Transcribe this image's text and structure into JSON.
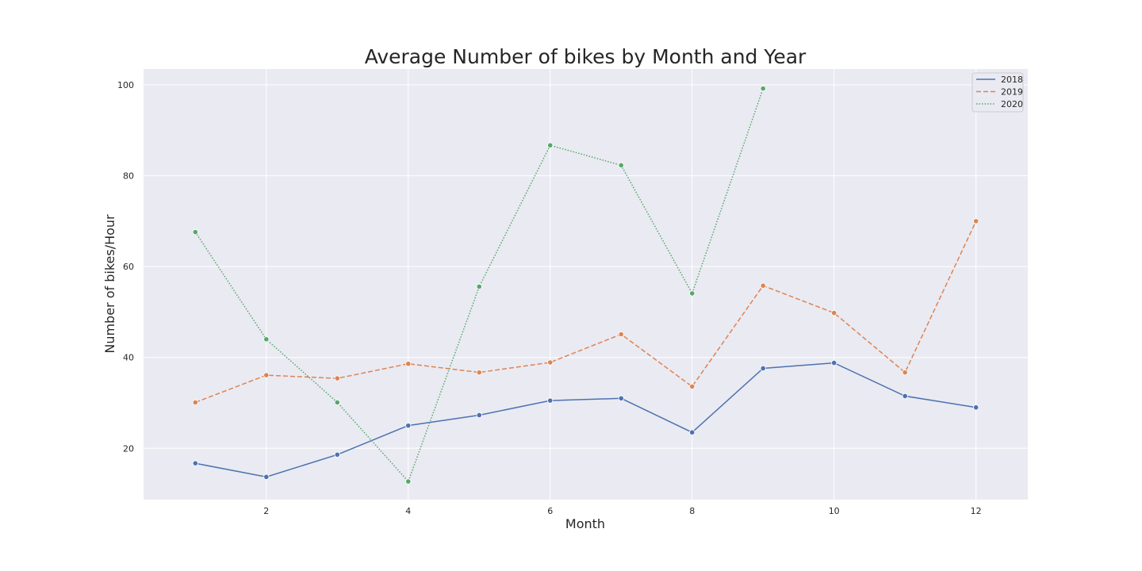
{
  "chart_data": {
    "type": "line",
    "title": "Average Number of bikes by Month and Year",
    "xlabel": "Month",
    "ylabel": "Number of bikes/Hour",
    "xlim": [
      0.27,
      12.73
    ],
    "ylim": [
      8.7,
      103.5
    ],
    "x_ticks": [
      2,
      4,
      6,
      8,
      10,
      12
    ],
    "y_ticks": [
      20,
      40,
      60,
      80,
      100
    ],
    "grid": true,
    "legend_position": "top-right",
    "series": [
      {
        "name": "2018",
        "color": "#4c72b0",
        "style": "solid",
        "x": [
          1,
          2,
          3,
          4,
          5,
          6,
          7,
          8,
          9,
          10,
          11,
          12
        ],
        "values": [
          16.7,
          13.7,
          18.6,
          25.0,
          27.3,
          30.5,
          31.0,
          23.5,
          37.6,
          38.8,
          31.5,
          29.0
        ]
      },
      {
        "name": "2019",
        "color": "#dd8452",
        "style": "dashed",
        "x": [
          1,
          2,
          3,
          4,
          5,
          6,
          7,
          8,
          9,
          10,
          11,
          12
        ],
        "values": [
          30.1,
          36.1,
          35.4,
          38.6,
          36.7,
          38.9,
          45.1,
          33.6,
          55.8,
          49.8,
          36.7,
          70.0
        ]
      },
      {
        "name": "2020",
        "color": "#55a868",
        "style": "dotted",
        "x": [
          1,
          2,
          3,
          4,
          5,
          6,
          7,
          8,
          9
        ],
        "values": [
          67.6,
          44.0,
          30.1,
          12.7,
          55.6,
          86.7,
          82.3,
          54.1,
          99.2
        ]
      }
    ]
  }
}
